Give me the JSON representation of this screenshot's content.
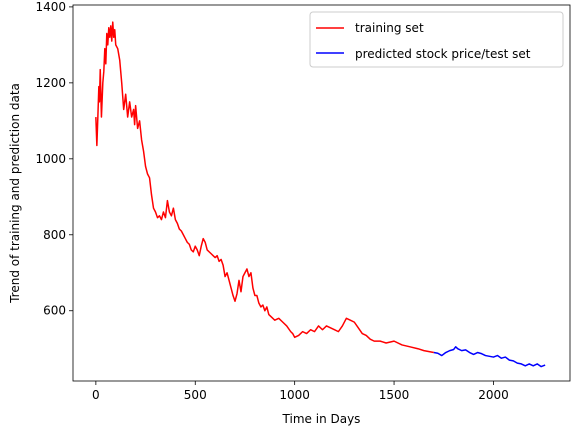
{
  "chart_data": {
    "type": "line",
    "title": "",
    "xlabel": "Time in Days",
    "ylabel": "Trend of training and prediction data",
    "xlim": [
      -115,
      2385
    ],
    "ylim": [
      415,
      1405
    ],
    "x_ticks": [
      0,
      500,
      1000,
      1500,
      2000
    ],
    "y_ticks": [
      600,
      800,
      1000,
      1200,
      1400
    ],
    "grid": false,
    "legend": "top-right",
    "series": [
      {
        "name": "training set",
        "color": "#ff0000",
        "x": [
          0,
          5,
          10,
          15,
          18,
          22,
          28,
          35,
          40,
          45,
          50,
          55,
          60,
          65,
          70,
          75,
          80,
          85,
          90,
          95,
          100,
          110,
          120,
          130,
          140,
          150,
          160,
          170,
          180,
          190,
          195,
          200,
          210,
          220,
          230,
          240,
          250,
          260,
          270,
          280,
          290,
          300,
          310,
          320,
          330,
          340,
          350,
          360,
          370,
          380,
          390,
          400,
          410,
          420,
          430,
          440,
          450,
          460,
          470,
          480,
          490,
          500,
          510,
          520,
          530,
          540,
          550,
          560,
          570,
          580,
          590,
          600,
          610,
          620,
          630,
          640,
          650,
          660,
          670,
          680,
          690,
          700,
          710,
          720,
          730,
          740,
          750,
          760,
          770,
          780,
          790,
          800,
          810,
          820,
          830,
          840,
          850,
          860,
          870,
          880,
          890,
          900,
          920,
          940,
          960,
          980,
          990,
          1000,
          1020,
          1040,
          1060,
          1080,
          1100,
          1120,
          1140,
          1160,
          1180,
          1200,
          1220,
          1240,
          1260,
          1280,
          1300,
          1320,
          1340,
          1360,
          1380,
          1400,
          1430,
          1460,
          1500,
          1540,
          1580,
          1620,
          1650,
          1680,
          1700
        ],
        "values": [
          1110,
          1035,
          1110,
          1190,
          1150,
          1235,
          1110,
          1200,
          1230,
          1290,
          1250,
          1330,
          1300,
          1345,
          1320,
          1350,
          1310,
          1360,
          1320,
          1340,
          1300,
          1290,
          1260,
          1200,
          1130,
          1170,
          1110,
          1150,
          1110,
          1130,
          1090,
          1140,
          1080,
          1100,
          1050,
          1020,
          980,
          960,
          950,
          905,
          870,
          860,
          845,
          850,
          840,
          860,
          845,
          890,
          860,
          850,
          870,
          840,
          830,
          815,
          810,
          800,
          790,
          780,
          775,
          760,
          755,
          770,
          760,
          745,
          770,
          790,
          780,
          760,
          755,
          750,
          745,
          740,
          745,
          730,
          735,
          720,
          690,
          700,
          680,
          660,
          640,
          625,
          645,
          680,
          650,
          690,
          700,
          710,
          690,
          700,
          660,
          640,
          640,
          620,
          610,
          615,
          600,
          610,
          590,
          585,
          580,
          575,
          580,
          570,
          560,
          545,
          540,
          530,
          535,
          545,
          540,
          550,
          545,
          560,
          550,
          560,
          555,
          550,
          545,
          560,
          580,
          575,
          570,
          555,
          540,
          535,
          525,
          520,
          520,
          515,
          520,
          510,
          505,
          500,
          495,
          492,
          490
        ]
      },
      {
        "name": "predicted stock price/test set",
        "color": "#0000ff",
        "x": [
          1700,
          1720,
          1740,
          1760,
          1780,
          1800,
          1810,
          1820,
          1840,
          1860,
          1880,
          1900,
          1920,
          1940,
          1960,
          1980,
          2000,
          2020,
          2040,
          2060,
          2080,
          2100,
          2120,
          2140,
          2160,
          2180,
          2200,
          2220,
          2240,
          2260
        ],
        "values": [
          490,
          488,
          482,
          490,
          495,
          498,
          505,
          500,
          495,
          497,
          490,
          485,
          490,
          487,
          482,
          480,
          478,
          482,
          475,
          478,
          470,
          468,
          462,
          460,
          455,
          460,
          455,
          460,
          453,
          457
        ]
      }
    ]
  }
}
